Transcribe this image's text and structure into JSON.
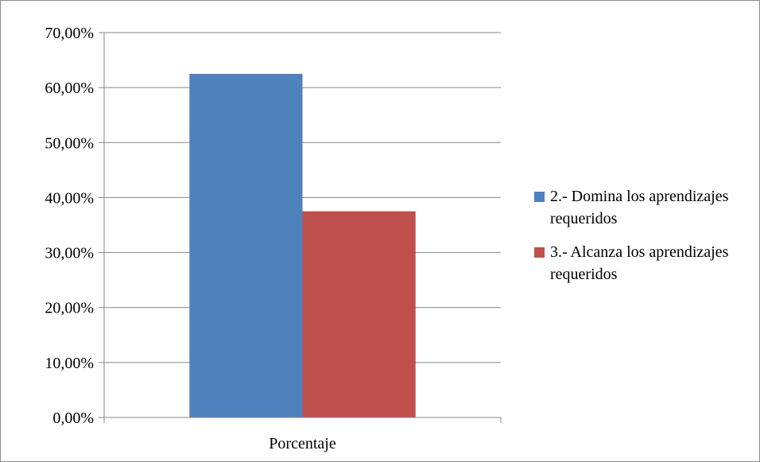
{
  "chart_data": {
    "type": "bar",
    "categories": [
      "Porcentaje"
    ],
    "series": [
      {
        "name": "2.- Domina los aprendizajes requeridos",
        "values": [
          62.5
        ],
        "color": "#4F81BD"
      },
      {
        "name": "3.- Alcanza los aprendizajes requeridos",
        "values": [
          37.5
        ],
        "color": "#C0504D"
      }
    ],
    "title": "",
    "xlabel": "",
    "ylabel": "",
    "ylim": [
      0,
      70
    ],
    "yticks": [
      0,
      10,
      20,
      30,
      40,
      50,
      60,
      70
    ],
    "ytick_labels": [
      "0,00%",
      "10,00%",
      "20,00%",
      "30,00%",
      "40,00%",
      "50,00%",
      "60,00%",
      "70,00%"
    ],
    "grid": true,
    "legend_position": "right"
  }
}
